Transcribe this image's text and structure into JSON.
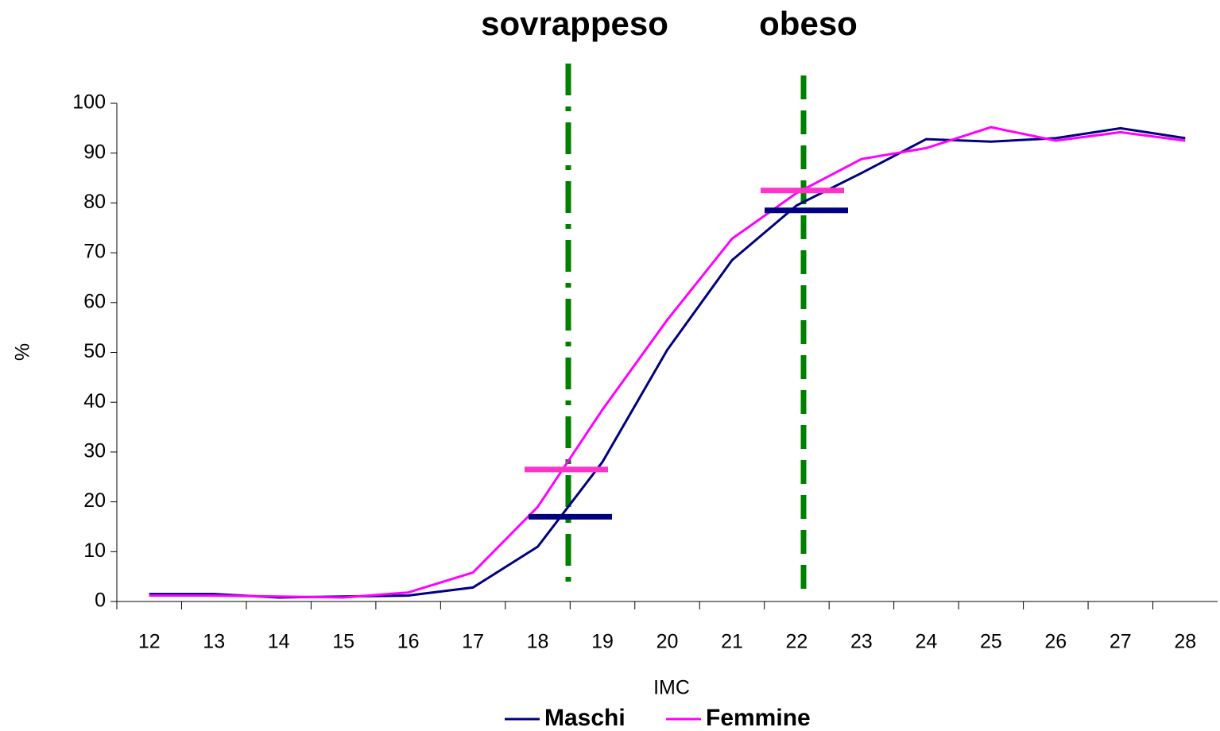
{
  "chart_data": {
    "type": "line",
    "annotations": [
      "sovrappeso",
      "obeso"
    ],
    "xlabel": "IMC",
    "ylabel": "%",
    "categories": [
      "12",
      "13",
      "14",
      "15",
      "16",
      "17",
      "18",
      "19",
      "20",
      "21",
      "22",
      "23",
      "24",
      "25",
      "26",
      "27",
      "28"
    ],
    "series": [
      {
        "name": "Maschi",
        "color": "#000080",
        "values": [
          1.5,
          1.5,
          0.8,
          1,
          1.2,
          2.8,
          11,
          28,
          50.5,
          68.5,
          79.5,
          86,
          92.8,
          92.3,
          93,
          95,
          93
        ]
      },
      {
        "name": "Femmine",
        "color": "#ff00ff",
        "values": [
          1.2,
          1.2,
          1,
          0.8,
          1.8,
          5.8,
          19,
          38.5,
          56.5,
          72.8,
          82,
          88.8,
          91,
          95.2,
          92.5,
          94.2,
          92.5
        ]
      }
    ],
    "thresholds": [
      {
        "values": [
          17,
          26.5
        ],
        "colors": [
          "#000080",
          "#ff33cc"
        ]
      },
      {
        "values": [
          78.5,
          82.5
        ],
        "colors": [
          "#000080",
          "#ff33cc"
        ]
      }
    ],
    "threshold_color": "#008000",
    "ylim": [
      0,
      100
    ],
    "yticks": [
      0,
      10,
      20,
      30,
      40,
      50,
      60,
      70,
      80,
      90,
      100
    ],
    "legend": "bottom"
  }
}
